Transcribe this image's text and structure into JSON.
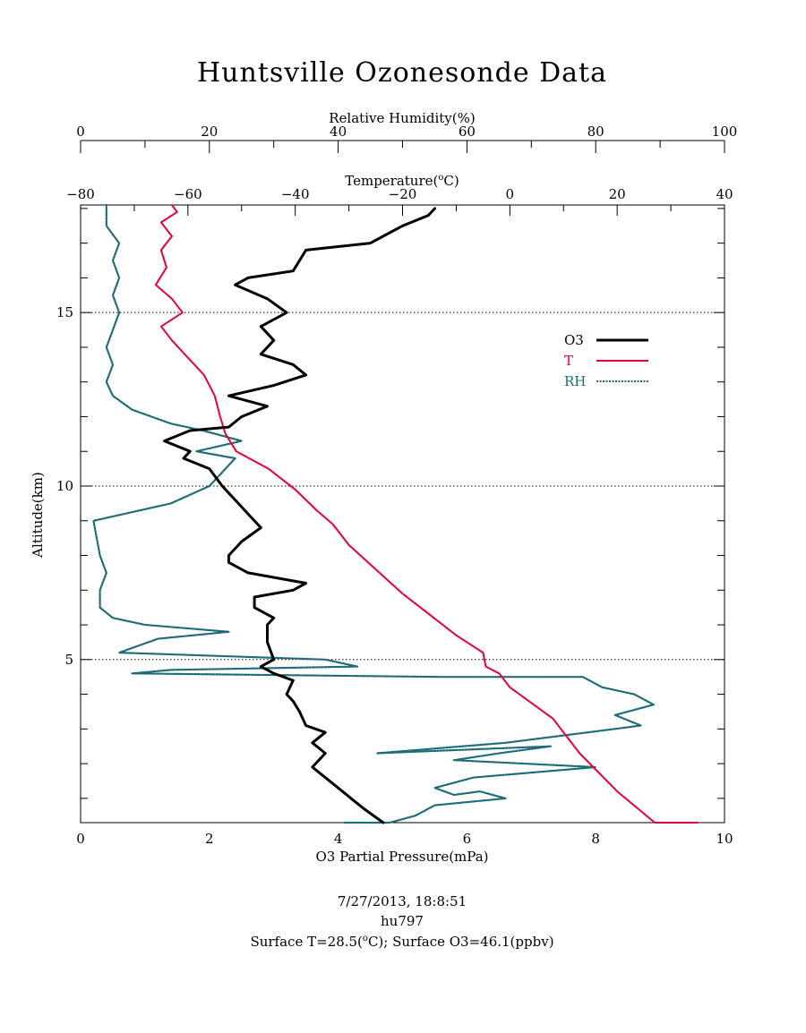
{
  "title": "Huntsville Ozonesonde Data",
  "footer": {
    "datetime": "7/27/2013, 18:8:51",
    "id": "hu797",
    "surface_t_prefix": "Surface T=28.5(",
    "surface_t_unit_sup": "o",
    "surface_t_unit": "C); Surface O3=46.1(ppbv)"
  },
  "axes": {
    "top_rh": {
      "label": "Relative Humidity(%)",
      "ticks": [
        "0",
        "20",
        "40",
        "60",
        "80",
        "100"
      ]
    },
    "top_temp": {
      "label_prefix": "Temperature(",
      "label_sup": "o",
      "label_suffix": "C)",
      "ticks": [
        "−80",
        "−60",
        "−40",
        "−20",
        "0",
        "20",
        "40"
      ]
    },
    "bottom_o3": {
      "label": "O3 Partial Pressure(mPa)",
      "ticks": [
        "0",
        "2",
        "4",
        "6",
        "8",
        "10"
      ]
    },
    "left_alt": {
      "label": "Altitude(km)",
      "ticks": [
        "5",
        "10",
        "15"
      ]
    }
  },
  "legend": {
    "items": [
      {
        "label": "O3",
        "color": "#000000"
      },
      {
        "label": "T",
        "color": "#e8003a"
      },
      {
        "label": "RH",
        "color": "#1e6b78"
      }
    ]
  },
  "chart_data": {
    "type": "line",
    "title": "Huntsville Ozonesonde Data",
    "ylabel": "Altitude(km)",
    "ylim": [
      0.3,
      18.1
    ],
    "y_ticks_labeled": [
      5,
      10,
      15
    ],
    "dotted_gridlines_y": [
      5,
      10,
      15
    ],
    "legend_position": "right",
    "x_axes": [
      {
        "name": "O3 Partial Pressure(mPa)",
        "position": "bottom",
        "range": [
          0,
          10
        ]
      },
      {
        "name": "Temperature(oC)",
        "position": "top",
        "range": [
          -80,
          40
        ]
      },
      {
        "name": "Relative Humidity(%)",
        "position": "top",
        "range": [
          0,
          100
        ]
      }
    ],
    "series": [
      {
        "name": "O3",
        "axis": "O3 Partial Pressure(mPa)",
        "color": "#000000",
        "points": [
          [
            4.7,
            0.3
          ],
          [
            4.4,
            0.7
          ],
          [
            4.2,
            1.0
          ],
          [
            4.0,
            1.3
          ],
          [
            3.8,
            1.6
          ],
          [
            3.6,
            1.9
          ],
          [
            3.8,
            2.3
          ],
          [
            3.6,
            2.6
          ],
          [
            3.8,
            2.9
          ],
          [
            3.5,
            3.1
          ],
          [
            3.4,
            3.5
          ],
          [
            3.3,
            3.8
          ],
          [
            3.2,
            4.0
          ],
          [
            3.3,
            4.4
          ],
          [
            3.0,
            4.6
          ],
          [
            2.8,
            4.8
          ],
          [
            3.0,
            5.0
          ],
          [
            2.9,
            5.5
          ],
          [
            2.9,
            6.0
          ],
          [
            3.0,
            6.2
          ],
          [
            2.7,
            6.5
          ],
          [
            2.7,
            6.8
          ],
          [
            3.3,
            7.0
          ],
          [
            3.5,
            7.2
          ],
          [
            2.6,
            7.5
          ],
          [
            2.3,
            7.8
          ],
          [
            2.3,
            8.0
          ],
          [
            2.5,
            8.4
          ],
          [
            2.8,
            8.8
          ],
          [
            2.6,
            9.2
          ],
          [
            2.4,
            9.6
          ],
          [
            2.2,
            10.0
          ],
          [
            2.0,
            10.5
          ],
          [
            1.6,
            10.8
          ],
          [
            1.7,
            11.0
          ],
          [
            1.3,
            11.3
          ],
          [
            1.7,
            11.6
          ],
          [
            2.3,
            11.7
          ],
          [
            2.5,
            12.0
          ],
          [
            2.9,
            12.3
          ],
          [
            2.3,
            12.6
          ],
          [
            3.0,
            12.9
          ],
          [
            3.5,
            13.2
          ],
          [
            3.3,
            13.5
          ],
          [
            2.8,
            13.8
          ],
          [
            3.0,
            14.2
          ],
          [
            2.8,
            14.6
          ],
          [
            3.2,
            15.0
          ],
          [
            2.9,
            15.4
          ],
          [
            2.4,
            15.8
          ],
          [
            2.6,
            16.0
          ],
          [
            3.3,
            16.2
          ],
          [
            3.4,
            16.5
          ],
          [
            3.5,
            16.8
          ],
          [
            4.5,
            17.0
          ],
          [
            4.8,
            17.3
          ],
          [
            5.0,
            17.5
          ],
          [
            5.4,
            17.8
          ],
          [
            5.5,
            18.0
          ]
        ]
      },
      {
        "name": "T",
        "axis": "Temperature(oC)",
        "color": "#e8003a",
        "points": [
          [
            35,
            0.3
          ],
          [
            27,
            0.3
          ],
          [
            20,
            1.2
          ],
          [
            13,
            2.3
          ],
          [
            8,
            3.3
          ],
          [
            0,
            4.2
          ],
          [
            -2,
            4.6
          ],
          [
            -4.5,
            4.8
          ],
          [
            -5,
            5.2
          ],
          [
            -10,
            5.7
          ],
          [
            -15,
            6.3
          ],
          [
            -20,
            6.9
          ],
          [
            -25,
            7.6
          ],
          [
            -30,
            8.3
          ],
          [
            -33,
            8.9
          ],
          [
            -36,
            9.3
          ],
          [
            -40,
            9.9
          ],
          [
            -45,
            10.5
          ],
          [
            -51,
            11.0
          ],
          [
            -53,
            11.5
          ],
          [
            -54,
            12.0
          ],
          [
            -55,
            12.6
          ],
          [
            -57,
            13.2
          ],
          [
            -60,
            13.7
          ],
          [
            -63,
            14.2
          ],
          [
            -65,
            14.6
          ],
          [
            -61,
            15.0
          ],
          [
            -63,
            15.4
          ],
          [
            -66,
            15.8
          ],
          [
            -64,
            16.3
          ],
          [
            -65,
            16.8
          ],
          [
            -63,
            17.2
          ],
          [
            -65,
            17.6
          ],
          [
            -62,
            17.9
          ],
          [
            -63,
            18.1
          ]
        ]
      },
      {
        "name": "RH",
        "axis": "Relative Humidity(%)",
        "color": "#1e6b78",
        "points": [
          [
            41,
            0.3
          ],
          [
            48,
            0.3
          ],
          [
            52,
            0.5
          ],
          [
            55,
            0.8
          ],
          [
            66,
            1.0
          ],
          [
            62,
            1.2
          ],
          [
            58,
            1.1
          ],
          [
            55,
            1.3
          ],
          [
            61,
            1.6
          ],
          [
            80,
            1.9
          ],
          [
            58,
            2.1
          ],
          [
            65,
            2.3
          ],
          [
            73,
            2.5
          ],
          [
            46,
            2.3
          ],
          [
            66,
            2.6
          ],
          [
            83,
            3.0
          ],
          [
            87,
            3.1
          ],
          [
            83,
            3.4
          ],
          [
            89,
            3.7
          ],
          [
            86,
            4.0
          ],
          [
            81,
            4.2
          ],
          [
            78,
            4.5
          ],
          [
            56,
            4.5
          ],
          [
            8,
            4.6
          ],
          [
            14,
            4.7
          ],
          [
            43,
            4.8
          ],
          [
            38,
            5.0
          ],
          [
            6,
            5.2
          ],
          [
            12,
            5.6
          ],
          [
            23,
            5.8
          ],
          [
            10,
            6.0
          ],
          [
            5,
            6.2
          ],
          [
            3,
            6.5
          ],
          [
            3,
            7.0
          ],
          [
            4,
            7.5
          ],
          [
            3,
            8.0
          ],
          [
            2,
            9.0
          ],
          [
            14,
            9.5
          ],
          [
            20,
            10.0
          ],
          [
            22,
            10.4
          ],
          [
            24,
            10.8
          ],
          [
            18,
            11.0
          ],
          [
            25,
            11.3
          ],
          [
            19,
            11.6
          ],
          [
            14,
            11.8
          ],
          [
            8,
            12.2
          ],
          [
            5,
            12.6
          ],
          [
            4,
            13.0
          ],
          [
            5,
            13.5
          ],
          [
            4,
            14.0
          ],
          [
            5,
            14.5
          ],
          [
            6,
            15.0
          ],
          [
            5,
            15.5
          ],
          [
            6,
            16.0
          ],
          [
            5,
            16.5
          ],
          [
            6,
            17.0
          ],
          [
            4,
            17.5
          ],
          [
            4,
            18.1
          ]
        ]
      }
    ]
  }
}
